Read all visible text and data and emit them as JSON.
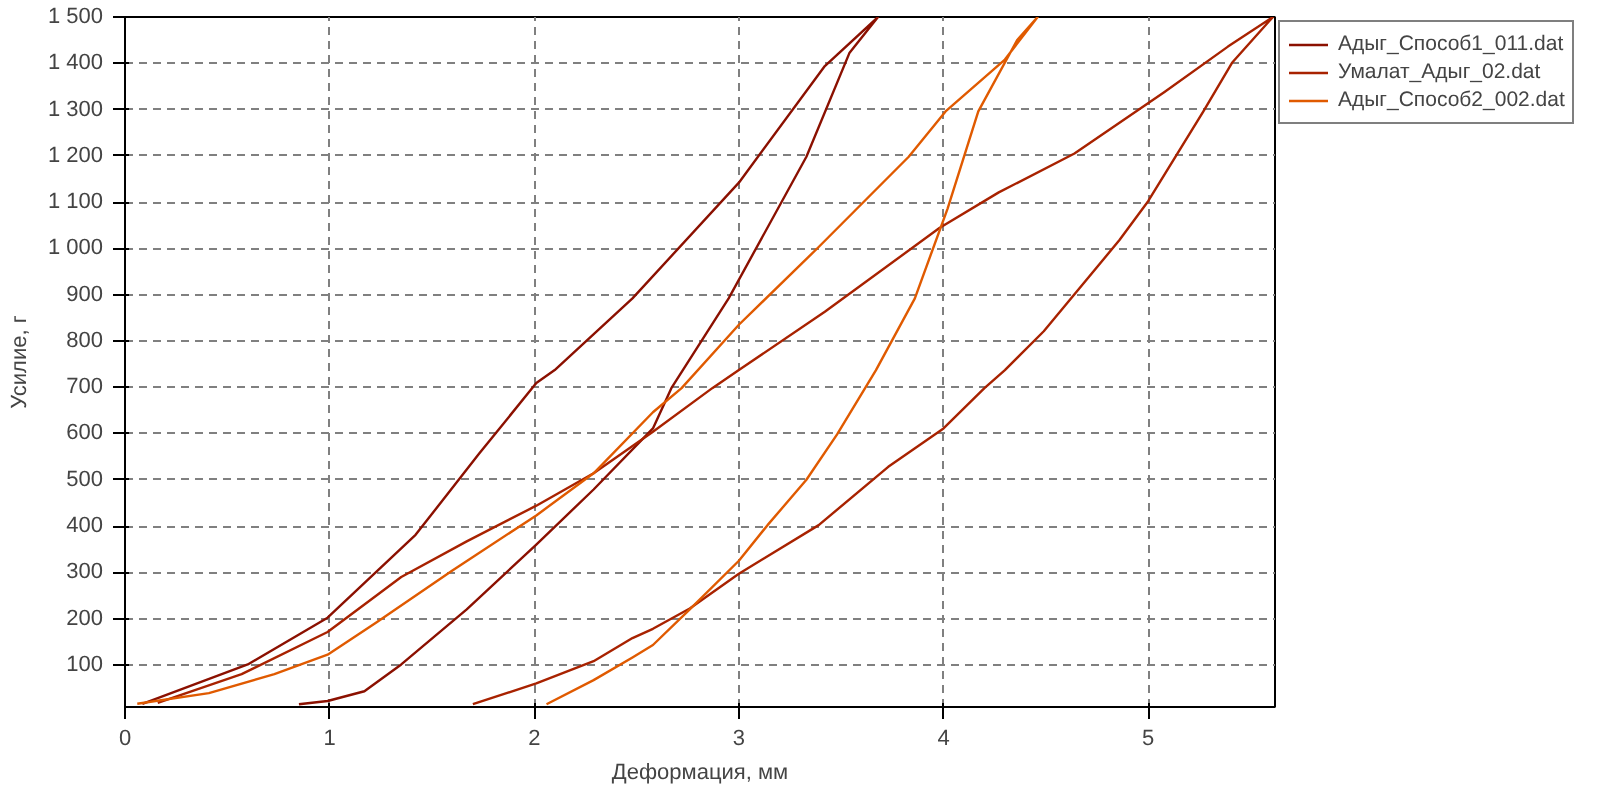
{
  "chart_data": {
    "type": "line",
    "xlabel": "Деформация, мм",
    "ylabel": "Усилие, г",
    "xlim": [
      0,
      5.62
    ],
    "ylim": [
      9,
      1500
    ],
    "xticks": [
      0,
      1,
      2,
      3,
      4,
      5
    ],
    "yticks": [
      100,
      200,
      300,
      400,
      500,
      600,
      700,
      800,
      900,
      {
        "value": 1000,
        "label": "1 000"
      },
      {
        "value": 1100,
        "label": "1 100"
      },
      {
        "value": 1200,
        "label": "1 200"
      },
      {
        "value": 1300,
        "label": "1 300"
      },
      {
        "value": 1400,
        "label": "1 400"
      },
      {
        "value": 1500,
        "label": "1 500"
      }
    ],
    "grid": true,
    "legend": "top right",
    "line_style": "solid",
    "marker": "none",
    "series": [
      {
        "name": "Адыг_Способ1_011.dat",
        "color": "#8b1000",
        "x": [
          0.085,
          0.6,
          0.99,
          1.42,
          1.73,
          2.01,
          2.1,
          2.48,
          3.0,
          3.42,
          3.68,
          3.54,
          3.33,
          2.95,
          2.67,
          2.58,
          2.29,
          2.01,
          1.67,
          1.35,
          1.17,
          0.99,
          0.85
        ],
        "values": [
          16,
          101,
          202,
          381,
          556,
          709,
          737,
          892,
          1142,
          1394,
          1500,
          1422,
          1198,
          892,
          698,
          611,
          479,
          360,
          220,
          101,
          43,
          22,
          15
        ]
      },
      {
        "name": "Умалат_Адыг_02.dat",
        "color": "#a82200",
        "x": [
          0.16,
          0.57,
          0.99,
          1.35,
          1.67,
          2.01,
          2.29,
          2.58,
          2.87,
          3.0,
          3.42,
          3.98,
          4.27,
          4.64,
          5.08,
          5.39,
          5.61,
          5.41,
          5.27,
          5.0,
          4.86,
          4.49,
          4.3,
          4.2,
          4.0,
          3.73,
          3.39,
          3.0,
          2.76,
          2.58,
          2.48,
          2.29,
          2.01,
          1.7
        ],
        "values": [
          18,
          80,
          171,
          290,
          367,
          444,
          514,
          604,
          698,
          737,
          863,
          1044,
          1121,
          1205,
          1338,
          1436,
          1500,
          1401,
          1296,
          1102,
          1018,
          821,
          737,
          698,
          611,
          528,
          402,
          297,
          222,
          178,
          158,
          108,
          60,
          15
        ]
      },
      {
        "name": "Адыг_Способ2_002.dat",
        "color": "#e05a00",
        "x": [
          0.06,
          0.41,
          0.73,
          0.99,
          1.23,
          1.6,
          2.01,
          2.29,
          2.58,
          2.72,
          3.0,
          3.39,
          3.83,
          4.01,
          4.3,
          4.46,
          4.36,
          4.17,
          4.02,
          3.86,
          3.67,
          3.48,
          3.33,
          3.14,
          3.0,
          2.76,
          2.58,
          2.48,
          2.29,
          2.06
        ],
        "values": [
          16,
          39,
          80,
          122,
          192,
          304,
          423,
          514,
          646,
          698,
          835,
          1003,
          1198,
          1296,
          1408,
          1500,
          1450,
          1296,
          1086,
          892,
          737,
          598,
          500,
          402,
          325,
          220,
          143,
          116,
          67,
          15
        ]
      }
    ]
  }
}
